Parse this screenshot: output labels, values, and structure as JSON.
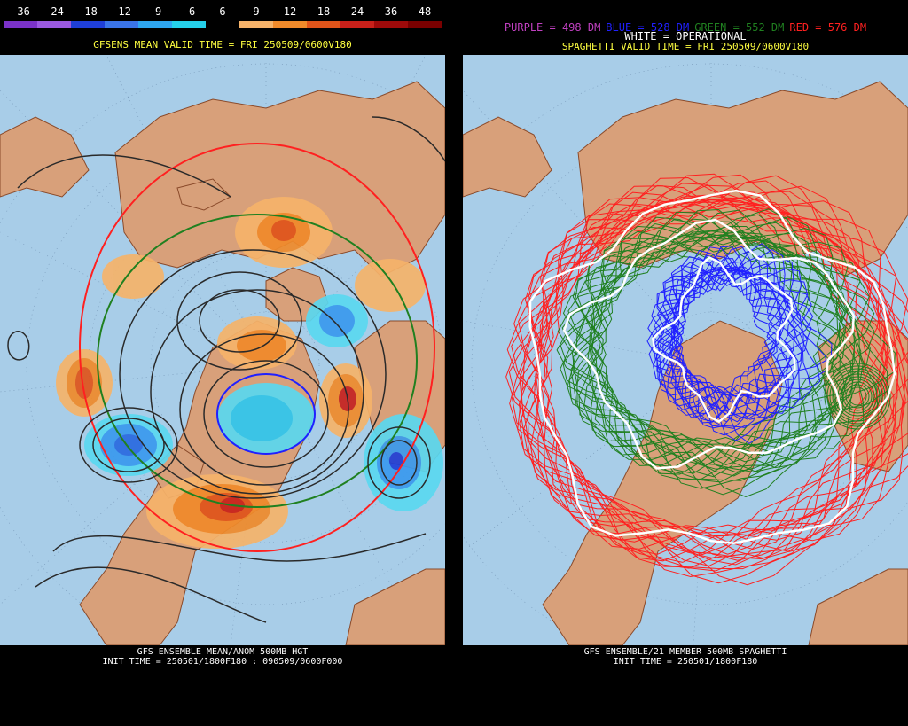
{
  "left_panel": {
    "colorbar": {
      "labels": [
        "-36",
        "-24",
        "-18",
        "-12",
        "-9",
        "-6",
        "6",
        "9",
        "12",
        "18",
        "24",
        "36",
        "48"
      ],
      "colors": [
        "#7b32c8",
        "#9b59e0",
        "#1f3fd8",
        "#3a74e8",
        "#2ea6f0",
        "#25d0ea",
        "#000000",
        "#f6b36a",
        "#f08a2a",
        "#e0541a",
        "#c8201a",
        "#9e0a0a",
        "#7a0000"
      ]
    },
    "header": "GFSENS MEAN VALID TIME = FRI 250509/0600V180",
    "footer_line1": "GFS ENSEMBLE MEAN/ANOM 500MB HGT",
    "footer_line2": "INIT TIME = 250501/1800F180 : 090509/0600F000"
  },
  "right_panel": {
    "legend": [
      {
        "label": "PURPLE = 498 DM",
        "color": "#c040c0"
      },
      {
        "label": "BLUE = 528 DM",
        "color": "#2020ff"
      },
      {
        "label": "GREEN = 552 DM",
        "color": "#208020"
      },
      {
        "label": "RED = 576 DM",
        "color": "#ff2020"
      }
    ],
    "operational": "WHITE = OPERATIONAL",
    "header": "SPAGHETTI VALID TIME = FRI 250509/0600V180",
    "footer_line1": "GFS ENSEMBLE/21 MEMBER 500MB SPAGHETTI",
    "footer_line2": "INIT TIME = 250501/1800F180"
  },
  "colors": {
    "ocean": "#a8cde8",
    "land": "#d8a07a",
    "coast": "#8a4a2a",
    "header_yellow": "#ffff40",
    "contour_black": "#2a2a2a"
  }
}
